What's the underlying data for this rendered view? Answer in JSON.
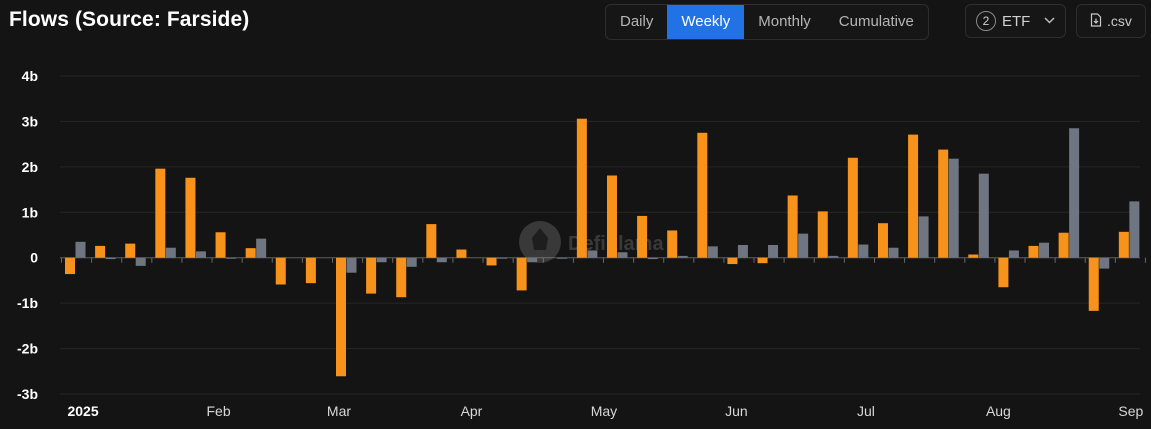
{
  "header": {
    "title": "Flows (Source: Farside)",
    "periods": [
      "Daily",
      "Weekly",
      "Monthly",
      "Cumulative"
    ],
    "active_period": "Weekly",
    "etf_count": "2",
    "etf_label": "ETF",
    "csv_label": ".csv"
  },
  "watermark": "DefiLlama",
  "colors": {
    "series_0": "#f7931a",
    "series_1": "#6f7682",
    "active": "#2172e5",
    "background": "#141414"
  },
  "chart_data": {
    "type": "bar",
    "y_unit_suffix": "b",
    "ylim": [
      -3,
      4
    ],
    "yticks": [
      {
        "value": 4,
        "label": "4b"
      },
      {
        "value": 3,
        "label": "3b"
      },
      {
        "value": 2,
        "label": "2b"
      },
      {
        "value": 1,
        "label": "1b"
      },
      {
        "value": 0,
        "label": "0"
      },
      {
        "value": -1,
        "label": "-1b"
      },
      {
        "value": -2,
        "label": "-2b"
      },
      {
        "value": -3,
        "label": "-3b"
      }
    ],
    "xticks": [
      {
        "index": 0.5,
        "label": "2025",
        "bold": true
      },
      {
        "index": 5.0,
        "label": "Feb",
        "bold": false
      },
      {
        "index": 9.0,
        "label": "Mar",
        "bold": false
      },
      {
        "index": 13.4,
        "label": "Apr",
        "bold": false
      },
      {
        "index": 17.8,
        "label": "May",
        "bold": false
      },
      {
        "index": 22.2,
        "label": "Jun",
        "bold": false
      },
      {
        "index": 26.5,
        "label": "Jul",
        "bold": false
      },
      {
        "index": 30.9,
        "label": "Aug",
        "bold": false
      },
      {
        "index": 35.3,
        "label": "Sep",
        "bold": false
      }
    ],
    "grid": true,
    "series": [
      {
        "values": [
          -0.36,
          0.26,
          0.31,
          1.96,
          1.76,
          0.56,
          0.21,
          -0.59,
          -0.56,
          -2.61,
          -0.79,
          -0.87,
          0.74,
          0.18,
          -0.17,
          -0.72,
          0.0,
          3.06,
          1.81,
          0.92,
          0.6,
          2.75,
          -0.14,
          -0.12,
          1.37,
          1.02,
          2.2,
          0.76,
          2.71,
          2.38,
          0.07,
          -0.65,
          0.26,
          0.55,
          -1.17,
          0.57
        ]
      },
      {
        "values": [
          0.35,
          -0.03,
          -0.18,
          0.22,
          0.14,
          -0.02,
          0.42,
          0.0,
          0.0,
          -0.33,
          -0.1,
          -0.2,
          -0.1,
          0.0,
          -0.02,
          -0.1,
          -0.02,
          0.16,
          0.12,
          -0.03,
          0.04,
          0.25,
          0.28,
          0.28,
          0.53,
          0.04,
          0.29,
          0.22,
          0.91,
          2.18,
          1.85,
          0.16,
          0.33,
          2.85,
          -0.24,
          1.24
        ]
      }
    ]
  }
}
